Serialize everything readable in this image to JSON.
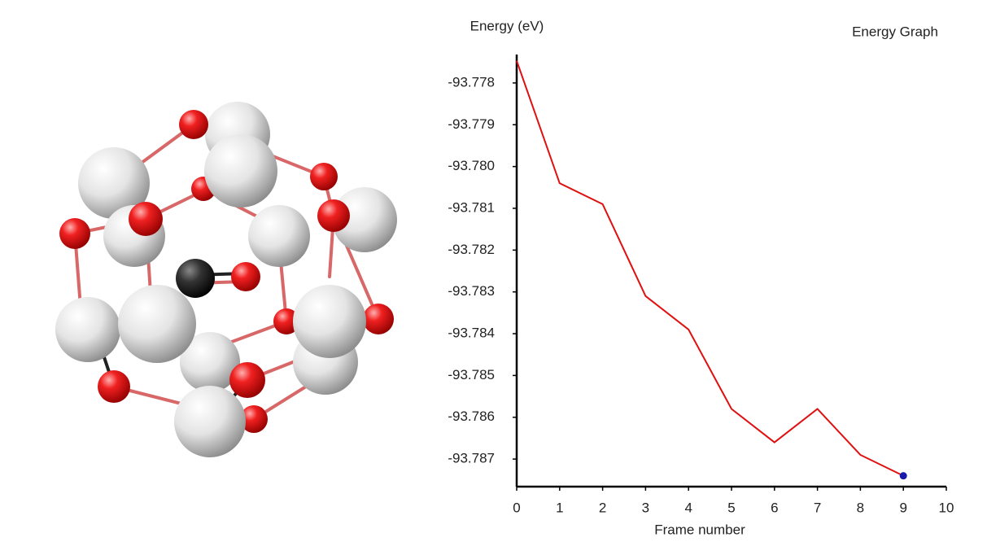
{
  "chart_data": {
    "type": "line",
    "title": "Energy Graph",
    "y_label": "Energy (eV)",
    "x_label": "Frame number",
    "x": [
      0,
      1,
      2,
      3,
      4,
      5,
      6,
      7,
      8,
      9
    ],
    "values": [
      -93.77747,
      -93.7804,
      -93.7809,
      -93.7831,
      -93.7839,
      -93.7858,
      -93.7866,
      -93.7858,
      -93.7869,
      -93.7874
    ],
    "color": "#e01010",
    "highlight_last": true,
    "highlight_color": "#1a1aa8",
    "xlim": [
      0,
      10
    ],
    "xticks": [
      0,
      1,
      2,
      3,
      4,
      5,
      6,
      7,
      8,
      9,
      10
    ],
    "ylim": [
      -93.78766,
      -93.77732
    ],
    "yticks": [
      -93.778,
      -93.779,
      {
        "value": -93.78,
        "label": "-93.780"
      },
      -93.781,
      -93.782,
      -93.783,
      -93.784,
      -93.785,
      -93.786,
      -93.787
    ]
  }
}
